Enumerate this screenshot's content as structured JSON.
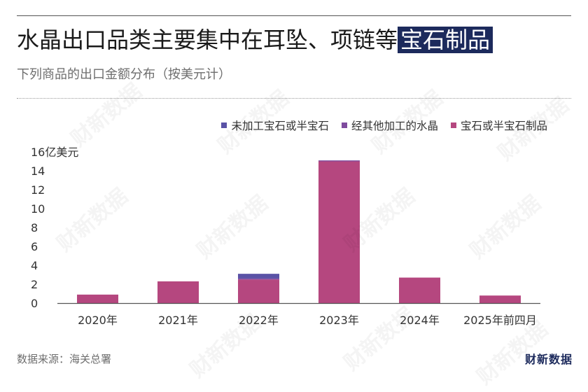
{
  "title": {
    "main": "水晶出口品类主要集中在耳坠、项链等",
    "highlight": "宝石制品"
  },
  "subtitle": "下列商品的出口金额分布（按美元计）",
  "source": "数据来源：海关总署",
  "logo": "财新数据",
  "watermark": "财新数据",
  "colors": {
    "series1": "#5a52a6",
    "series2": "#7e4b9e",
    "series3": "#b5477f",
    "axis": "#555555",
    "highlight_bg": "#1c2a5c"
  },
  "chart_data": {
    "type": "bar",
    "stacked": true,
    "categories": [
      "2020年",
      "2021年",
      "2022年",
      "2023年",
      "2024年",
      "2025年前四月"
    ],
    "series": [
      {
        "name": "未加工宝石或半宝石",
        "values": [
          0,
          0,
          0.5,
          0,
          0,
          0
        ]
      },
      {
        "name": "经其他加工的水晶",
        "values": [
          0,
          0,
          0.1,
          0.1,
          0,
          0
        ]
      },
      {
        "name": "宝石或半宝石制品",
        "values": [
          0.9,
          2.3,
          2.5,
          15.0,
          2.7,
          0.8
        ]
      }
    ],
    "ylim": [
      0,
      16
    ],
    "yticks": [
      0,
      2,
      4,
      6,
      8,
      10,
      12,
      14,
      16
    ],
    "ytick_labels": [
      "0",
      "2",
      "4",
      "6",
      "8",
      "10",
      "12",
      "14",
      "16亿美元"
    ],
    "legend_position": "top-right",
    "grid": false
  }
}
